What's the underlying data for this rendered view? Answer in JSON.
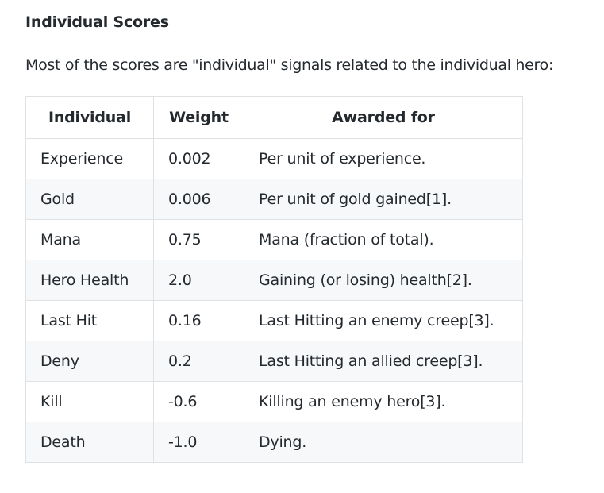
{
  "section": {
    "heading": "Individual Scores",
    "intro": "Most of the scores are \"individual\" signals related to the individual hero:"
  },
  "table": {
    "headers": {
      "individual": "Individual",
      "weight": "Weight",
      "awarded_for": "Awarded for"
    },
    "rows": [
      {
        "individual": "Experience",
        "weight": "0.002",
        "awarded_for": "Per unit of experience."
      },
      {
        "individual": "Gold",
        "weight": "0.006",
        "awarded_for": "Per unit of gold gained[1]."
      },
      {
        "individual": "Mana",
        "weight": "0.75",
        "awarded_for": "Mana (fraction of total)."
      },
      {
        "individual": "Hero Health",
        "weight": "2.0",
        "awarded_for": "Gaining (or losing) health[2]."
      },
      {
        "individual": "Last Hit",
        "weight": "0.16",
        "awarded_for": "Last Hitting an enemy creep[3]."
      },
      {
        "individual": "Deny",
        "weight": "0.2",
        "awarded_for": "Last Hitting an allied creep[3]."
      },
      {
        "individual": "Kill",
        "weight": "-0.6",
        "awarded_for": "Killing an enemy hero[3]."
      },
      {
        "individual": "Death",
        "weight": "-1.0",
        "awarded_for": "Dying."
      }
    ]
  }
}
